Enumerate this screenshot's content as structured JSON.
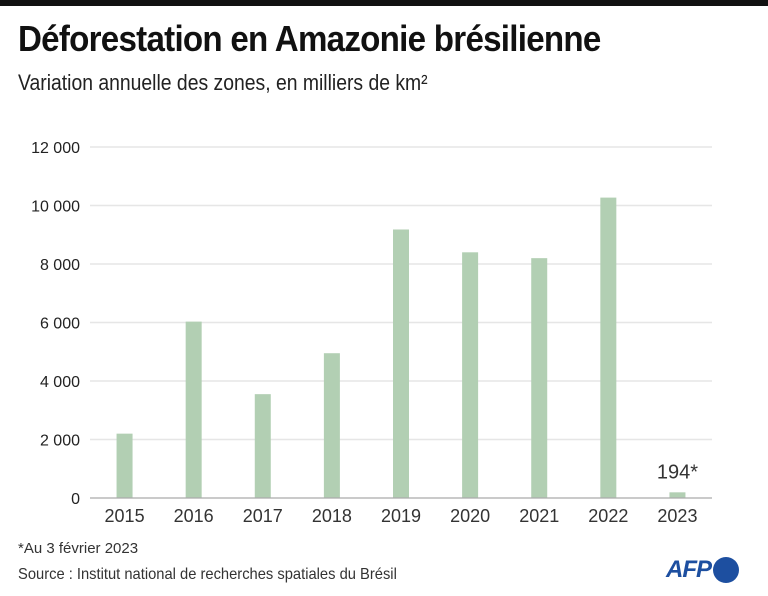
{
  "header": {
    "title": "Déforestation en Amazonie brésilienne",
    "subtitle": "Variation annuelle des zones, en milliers de km²"
  },
  "footer": {
    "footnote": "*Au 3 février 2023",
    "source": "Source : Institut national de recherches spatiales du Brésil",
    "logo": "AFP"
  },
  "colors": {
    "bar": "#b2cfb3",
    "grid": "#e6e6e6",
    "axis": "#aaaaaa",
    "logo": "#1d4fa0"
  },
  "chart_data": {
    "type": "bar",
    "title": "Déforestation en Amazonie brésilienne",
    "subtitle": "Variation annuelle des zones, en milliers de km²",
    "xlabel": "",
    "ylabel": "",
    "categories": [
      "2015",
      "2016",
      "2017",
      "2018",
      "2019",
      "2020",
      "2021",
      "2022",
      "2023"
    ],
    "values": [
      2200,
      6030,
      3550,
      4950,
      9180,
      8400,
      8200,
      10270,
      194
    ],
    "ylim": [
      0,
      12000
    ],
    "yticks": [
      0,
      2000,
      4000,
      6000,
      8000,
      10000,
      12000
    ],
    "ytick_labels": [
      "0",
      "2 000",
      "4 000",
      "6 000",
      "8 000",
      "10 000",
      "12 000"
    ],
    "grid": true,
    "legend": "none",
    "annotations": [
      {
        "category": "2023",
        "text": "194*"
      }
    ]
  }
}
